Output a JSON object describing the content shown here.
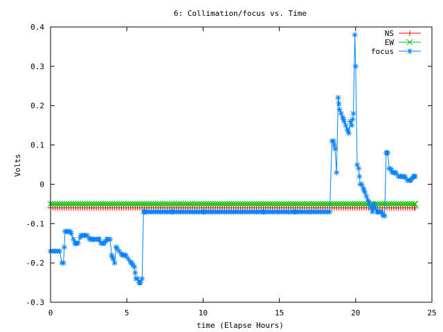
{
  "chart_data": {
    "type": "line",
    "title": "6: Collimation/focus vs. Time",
    "xlabel": "time (Elapse Hours)",
    "ylabel": "Volts",
    "xlim": [
      0,
      25
    ],
    "ylim": [
      -0.3,
      0.4
    ],
    "xticks": [
      0,
      5,
      10,
      15,
      20,
      25
    ],
    "xtick_labels": [
      "0",
      "5",
      "10",
      "15",
      "20",
      "25"
    ],
    "yticks": [
      -0.3,
      -0.2,
      -0.1,
      0,
      0.1,
      0.2,
      0.3,
      0.4
    ],
    "ytick_labels": [
      "-0.3",
      "-0.2",
      "-0.1",
      "0",
      "0.1",
      "0.2",
      "0.3",
      "0.4"
    ],
    "grid": false,
    "legend_position": "top-right",
    "series": [
      {
        "name": "NS",
        "color": "#ff0000",
        "marker": "plus",
        "x": [
          0,
          23.9
        ],
        "y": [
          -0.06,
          -0.06
        ],
        "sample_step": 0.15
      },
      {
        "name": "EW",
        "color": "#00c000",
        "marker": "cross",
        "x": [
          0,
          23.9
        ],
        "y": [
          -0.05,
          -0.05
        ],
        "sample_step": 0.15
      },
      {
        "name": "focus",
        "color": "#0080ff",
        "marker": "star",
        "x": [
          0,
          0.3,
          0.6,
          0.75,
          0.85,
          0.95,
          1.1,
          1.3,
          1.5,
          1.6,
          1.7,
          1.8,
          2.0,
          2.2,
          2.4,
          2.6,
          2.8,
          3.0,
          3.2,
          3.3,
          3.5,
          3.7,
          3.9,
          4.0,
          4.1,
          4.2,
          4.3,
          4.5,
          4.7,
          4.9,
          5.1,
          5.3,
          5.5,
          5.6,
          5.7,
          5.8,
          5.9,
          6.0,
          6.1,
          6.2,
          8.0,
          10.0,
          12.0,
          14.0,
          16.0,
          18.0,
          18.3,
          18.45,
          18.55,
          18.65,
          18.75,
          18.85,
          18.95,
          19.05,
          19.15,
          19.25,
          19.35,
          19.45,
          19.55,
          19.65,
          19.75,
          19.85,
          19.95,
          20.0,
          20.1,
          20.2,
          20.3,
          20.4,
          20.5,
          20.6,
          20.7,
          20.8,
          20.9,
          21.0,
          21.1,
          21.2,
          21.3,
          21.4,
          21.5,
          21.6,
          21.7,
          21.8,
          21.9,
          22.0,
          22.1,
          22.2,
          22.3,
          22.4,
          22.6,
          22.8,
          23.0,
          23.2,
          23.4,
          23.6,
          23.8,
          23.9
        ],
        "y": [
          -0.17,
          -0.17,
          -0.17,
          -0.2,
          -0.2,
          -0.12,
          -0.12,
          -0.12,
          -0.14,
          -0.15,
          -0.15,
          -0.15,
          -0.13,
          -0.13,
          -0.13,
          -0.14,
          -0.14,
          -0.14,
          -0.14,
          -0.15,
          -0.15,
          -0.14,
          -0.14,
          -0.18,
          -0.19,
          -0.2,
          -0.16,
          -0.17,
          -0.18,
          -0.18,
          -0.19,
          -0.2,
          -0.21,
          -0.24,
          -0.24,
          -0.25,
          -0.25,
          -0.24,
          -0.07,
          -0.07,
          -0.07,
          -0.07,
          -0.07,
          -0.07,
          -0.07,
          -0.07,
          -0.07,
          0.11,
          0.11,
          0.09,
          0.03,
          0.22,
          0.19,
          0.18,
          0.17,
          0.16,
          0.15,
          0.14,
          0.13,
          0.16,
          0.15,
          0.18,
          0.38,
          0.3,
          0.05,
          0.04,
          0.0,
          0.0,
          -0.01,
          -0.02,
          -0.03,
          -0.04,
          -0.05,
          -0.06,
          -0.07,
          -0.05,
          -0.06,
          -0.07,
          -0.07,
          -0.07,
          -0.07,
          -0.08,
          -0.08,
          0.08,
          0.08,
          0.04,
          0.04,
          0.03,
          0.03,
          0.02,
          0.02,
          0.02,
          0.01,
          0.01,
          0.02,
          0.02
        ],
        "sample_step": 0.15
      }
    ]
  }
}
